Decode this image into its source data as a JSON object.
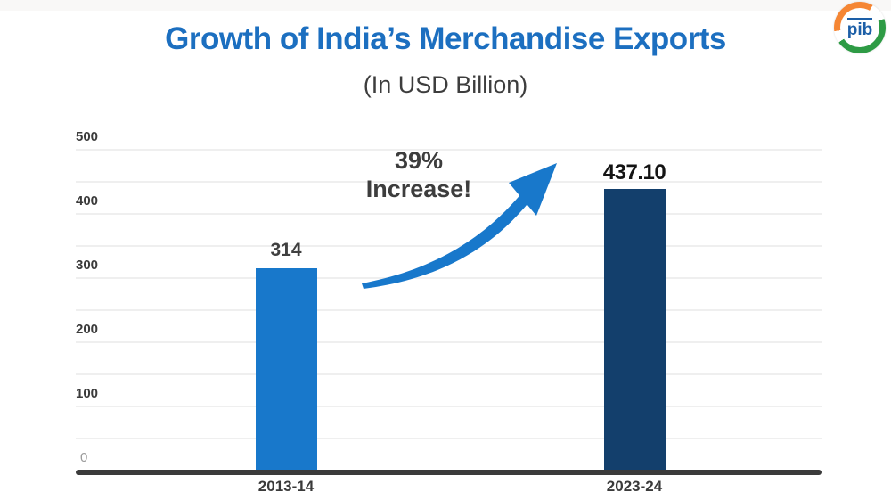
{
  "header": {
    "title": "Growth of India’s Merchandise Exports",
    "subtitle": "(In USD Billion)",
    "title_color": "#1c6fc0"
  },
  "logo": {
    "name": "Press Information Bureau",
    "text": "pib",
    "saffron": "#f58634",
    "green": "#2e9b45",
    "blue": "#1d5fa7"
  },
  "annotation": {
    "line1": "39%",
    "line2": "Increase!",
    "arrow_color": "#1878cb"
  },
  "chart_data": {
    "type": "bar",
    "title": "Growth of India’s Merchandise Exports",
    "subtitle": "(In USD Billion)",
    "categories": [
      "2013-14",
      "2023-24"
    ],
    "values": [
      314,
      437.1
    ],
    "value_labels": [
      "314",
      "437.10"
    ],
    "bar_colors": [
      "#1878cb",
      "#133f6c"
    ],
    "xlabel": "",
    "ylabel": "",
    "ylim": [
      0,
      500
    ],
    "yticks": [
      0,
      100,
      200,
      300,
      400,
      500
    ],
    "minor_grid_step": 50,
    "grid": "horizontal minor gridlines, very faint",
    "legend": "none",
    "annotation_text": "39% Increase!",
    "axis_color": "#3b3b3b"
  }
}
